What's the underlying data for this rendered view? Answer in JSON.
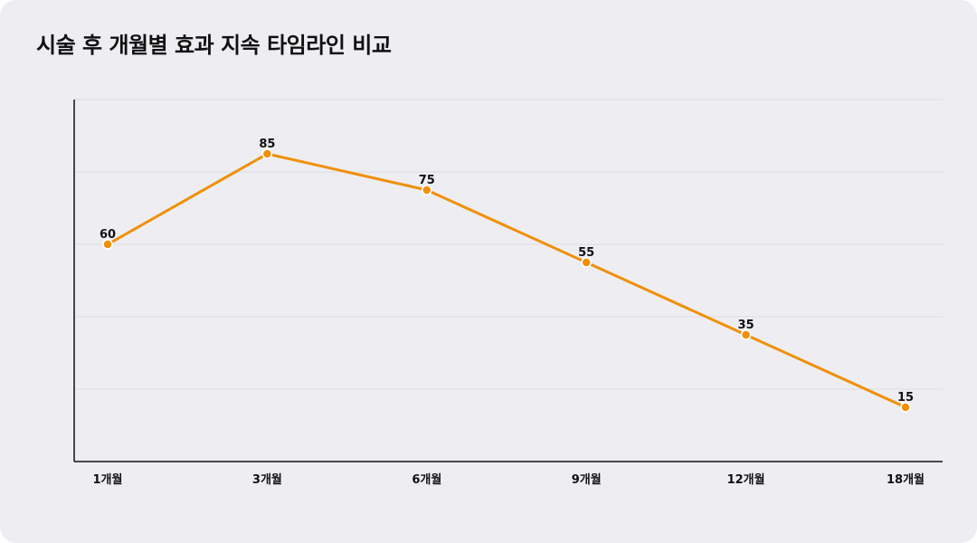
{
  "title": "시술 후 개월별 효과 지속 타임라인 비교",
  "colors": {
    "line": "#f0900a",
    "point": "#f0900a",
    "point_stroke": "#ffffff",
    "grid": "#dcdce2",
    "axis": "#111111",
    "background": "#eeeef2"
  },
  "chart_data": {
    "type": "line",
    "categories": [
      "1개월",
      "3개월",
      "6개월",
      "9개월",
      "12개월",
      "18개월"
    ],
    "series": [
      {
        "values": [
          60,
          85,
          75,
          55,
          35,
          15
        ]
      }
    ],
    "title": "시술 후 개월별 효과 지속 타임라인 비교",
    "xlabel": "",
    "ylabel": "",
    "ylim": [
      0,
      100
    ],
    "y_gridlines": [
      20,
      40,
      60,
      80,
      100
    ],
    "y_tick_labels_shown": false,
    "grid": true,
    "legend": "none"
  }
}
